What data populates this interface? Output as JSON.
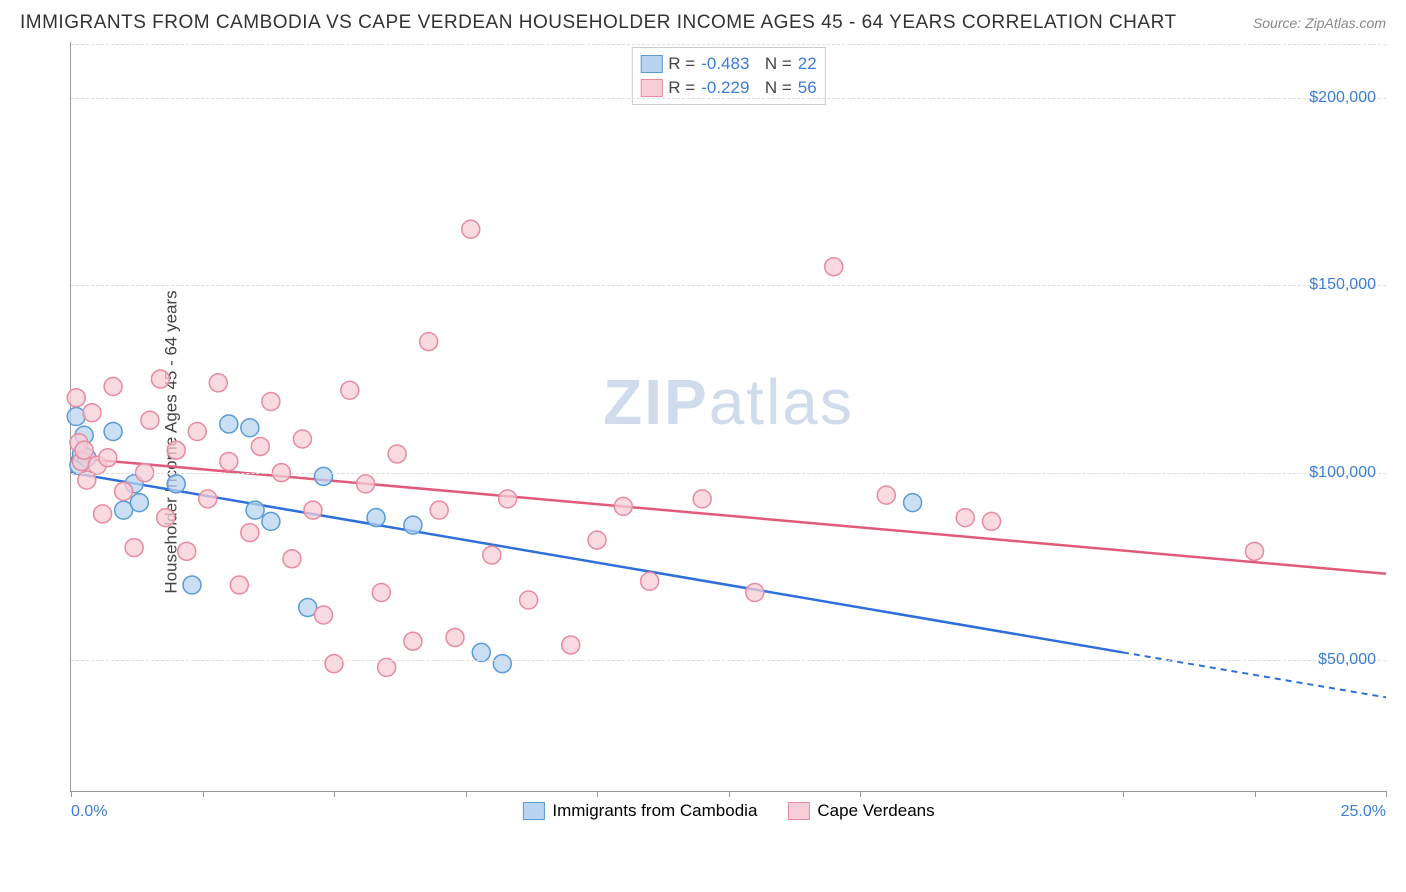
{
  "header": {
    "title": "IMMIGRANTS FROM CAMBODIA VS CAPE VERDEAN HOUSEHOLDER INCOME AGES 45 - 64 YEARS CORRELATION CHART",
    "source": "Source: ZipAtlas.com"
  },
  "chart": {
    "type": "scatter",
    "y_axis_label": "Householder Income Ages 45 - 64 years",
    "xlim": [
      0,
      25
    ],
    "ylim": [
      15000,
      215000
    ],
    "x_label_min": "0.0%",
    "x_label_max": "25.0%",
    "x_ticks_pct": [
      0,
      2.5,
      5,
      7.5,
      10,
      12.5,
      15,
      20,
      22.5,
      25
    ],
    "y_gridlines": [
      50000,
      100000,
      150000,
      200000
    ],
    "y_tick_labels": [
      "$50,000",
      "$100,000",
      "$150,000",
      "$200,000"
    ],
    "axis_label_color": "#3b7dd8",
    "grid_color": "#dddddd",
    "background_color": "#ffffff",
    "watermark": "ZIPatlas",
    "series": [
      {
        "name": "Immigrants from Cambodia",
        "marker_fill": "#b8d4f0",
        "marker_stroke": "#5a9bd5",
        "line_color": "#2e6fd9",
        "r_value": "-0.483",
        "n_value": "22",
        "points": [
          [
            0.1,
            115000
          ],
          [
            0.15,
            102000
          ],
          [
            0.2,
            105000
          ],
          [
            0.25,
            110000
          ],
          [
            0.3,
            104000
          ],
          [
            0.8,
            111000
          ],
          [
            1.0,
            90000
          ],
          [
            1.2,
            97000
          ],
          [
            1.3,
            92000
          ],
          [
            2.0,
            97000
          ],
          [
            2.3,
            70000
          ],
          [
            3.0,
            113000
          ],
          [
            3.4,
            112000
          ],
          [
            3.5,
            90000
          ],
          [
            3.8,
            87000
          ],
          [
            4.5,
            64000
          ],
          [
            4.8,
            99000
          ],
          [
            5.8,
            88000
          ],
          [
            6.5,
            86000
          ],
          [
            7.8,
            52000
          ],
          [
            8.2,
            49000
          ],
          [
            16.0,
            92000
          ]
        ],
        "regression": {
          "x1": 0,
          "y1": 100000,
          "x2": 25,
          "y2": 40000,
          "dashed_from_x": 20
        }
      },
      {
        "name": "Cape Verdeans",
        "marker_fill": "#f7cdd7",
        "marker_stroke": "#e88ba0",
        "line_color": "#e05a7a",
        "r_value": "-0.229",
        "n_value": "56",
        "points": [
          [
            0.1,
            120000
          ],
          [
            0.15,
            108000
          ],
          [
            0.2,
            103000
          ],
          [
            0.25,
            106000
          ],
          [
            0.3,
            98000
          ],
          [
            0.4,
            116000
          ],
          [
            0.5,
            102000
          ],
          [
            0.6,
            89000
          ],
          [
            0.7,
            104000
          ],
          [
            0.8,
            123000
          ],
          [
            1.0,
            95000
          ],
          [
            1.2,
            80000
          ],
          [
            1.4,
            100000
          ],
          [
            1.5,
            114000
          ],
          [
            1.7,
            125000
          ],
          [
            1.8,
            88000
          ],
          [
            2.0,
            106000
          ],
          [
            2.2,
            79000
          ],
          [
            2.4,
            111000
          ],
          [
            2.6,
            93000
          ],
          [
            2.8,
            124000
          ],
          [
            3.0,
            103000
          ],
          [
            3.2,
            70000
          ],
          [
            3.4,
            84000
          ],
          [
            3.6,
            107000
          ],
          [
            3.8,
            119000
          ],
          [
            4.0,
            100000
          ],
          [
            4.2,
            77000
          ],
          [
            4.4,
            109000
          ],
          [
            4.6,
            90000
          ],
          [
            4.8,
            62000
          ],
          [
            5.0,
            49000
          ],
          [
            5.3,
            122000
          ],
          [
            5.6,
            97000
          ],
          [
            5.9,
            68000
          ],
          [
            6.2,
            105000
          ],
          [
            6.5,
            55000
          ],
          [
            6.8,
            135000
          ],
          [
            7.0,
            90000
          ],
          [
            7.3,
            56000
          ],
          [
            7.6,
            165000
          ],
          [
            8.0,
            78000
          ],
          [
            8.3,
            93000
          ],
          [
            8.7,
            66000
          ],
          [
            9.5,
            54000
          ],
          [
            10.0,
            82000
          ],
          [
            10.5,
            91000
          ],
          [
            11.0,
            71000
          ],
          [
            12.0,
            93000
          ],
          [
            13.0,
            68000
          ],
          [
            14.5,
            155000
          ],
          [
            15.5,
            94000
          ],
          [
            17.0,
            88000
          ],
          [
            17.5,
            87000
          ],
          [
            22.5,
            79000
          ],
          [
            6.0,
            48000
          ]
        ],
        "regression": {
          "x1": 0,
          "y1": 104000,
          "x2": 25,
          "y2": 73000,
          "dashed_from_x": 25
        }
      }
    ]
  }
}
